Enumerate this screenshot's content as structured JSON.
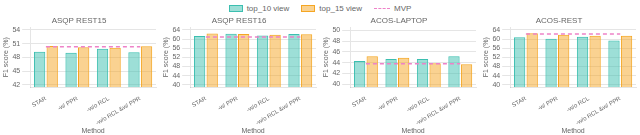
{
  "chart_data": [
    {
      "type": "bar",
      "title": "ASQP REST15",
      "xlabel": "Method",
      "ylabel": "F1 score (%)",
      "categories": [
        "STAR",
        "-w/ PPR",
        "-w/o RCL",
        "-w/o RCL &w/ PPR"
      ],
      "series": [
        {
          "name": "top_10 view",
          "color": "#3CBFB0",
          "values": [
            49.2,
            49.0,
            49.9,
            49.1
          ]
        },
        {
          "name": "top_15 view",
          "color": "#F5A623",
          "values": [
            50.5,
            50.2,
            50.1,
            50.4
          ]
        },
        {
          "name": "MVP",
          "type": "line",
          "line_style": "dashed",
          "color": "#EE82C8",
          "values": [
            50.3,
            50.3,
            50.3,
            50.3
          ]
        }
      ],
      "ylim": [
        41.5,
        54.5
      ],
      "yticks": [
        42,
        45,
        48,
        51,
        54
      ],
      "grid": true,
      "legend": "top"
    },
    {
      "type": "bar",
      "title": "ASQP REST16",
      "xlabel": "Method",
      "ylabel": "F1 score (%)",
      "categories": [
        "STAR",
        "-w/ PPR",
        "-w/o RCL",
        "-w/o RCL &w/ PPR"
      ],
      "series": [
        {
          "name": "top_10 view",
          "color": "#3CBFB0",
          "values": [
            61.3,
            62.3,
            61.5,
            62.2
          ]
        },
        {
          "name": "top_15 view",
          "color": "#F5A623",
          "values": [
            62.4,
            62.2,
            61.9,
            62.1
          ]
        },
        {
          "name": "MVP",
          "type": "line",
          "line_style": "dashed",
          "color": "#EE82C8",
          "values": [
            60.9,
            60.9,
            60.9,
            60.9
          ]
        }
      ],
      "ylim": [
        39,
        65
      ],
      "yticks": [
        40,
        44,
        48,
        52,
        56,
        60,
        64
      ],
      "grid": true,
      "legend": "top"
    },
    {
      "type": "bar",
      "title": "ACOS-LAPTOP",
      "xlabel": "Method",
      "ylabel": "F1 score (%)",
      "categories": [
        "STAR",
        "-w/ PPR",
        "-w/o RCL",
        "-w/o RCL &w/ PPR"
      ],
      "series": [
        {
          "name": "top_10 view",
          "color": "#3CBFB0",
          "values": [
            44.3,
            44.7,
            44.7,
            45.2
          ]
        },
        {
          "name": "top_15 view",
          "color": "#F5A623",
          "values": [
            45.2,
            44.9,
            43.9,
            43.7
          ]
        },
        {
          "name": "MVP",
          "type": "line",
          "line_style": "dashed",
          "color": "#EE82C8",
          "values": [
            43.8,
            43.8,
            43.8,
            43.8
          ]
        }
      ],
      "ylim": [
        39.5,
        50.5
      ],
      "yticks": [
        40,
        42,
        44,
        46,
        48,
        50
      ],
      "grid": true,
      "legend": "top"
    },
    {
      "type": "bar",
      "title": "ACOS-REST",
      "xlabel": "Method",
      "ylabel": "F1 score (%)",
      "categories": [
        "STAR",
        "-w/ PPR",
        "-w/o RCL",
        "-w/o RCL &w/ PPR"
      ],
      "series": [
        {
          "name": "top_10 view",
          "color": "#3CBFB0",
          "values": [
            60.8,
            60.1,
            61.0,
            59.4
          ]
        },
        {
          "name": "top_15 view",
          "color": "#F5A623",
          "values": [
            62.5,
            61.9,
            61.4,
            61.4
          ]
        },
        {
          "name": "MVP",
          "type": "line",
          "line_style": "dashed",
          "color": "#EE82C8",
          "values": [
            62.2,
            62.2,
            62.2,
            62.2
          ]
        }
      ],
      "ylim": [
        39,
        65
      ],
      "yticks": [
        40,
        44,
        48,
        52,
        56,
        60,
        64
      ],
      "grid": true,
      "legend": "top"
    }
  ]
}
